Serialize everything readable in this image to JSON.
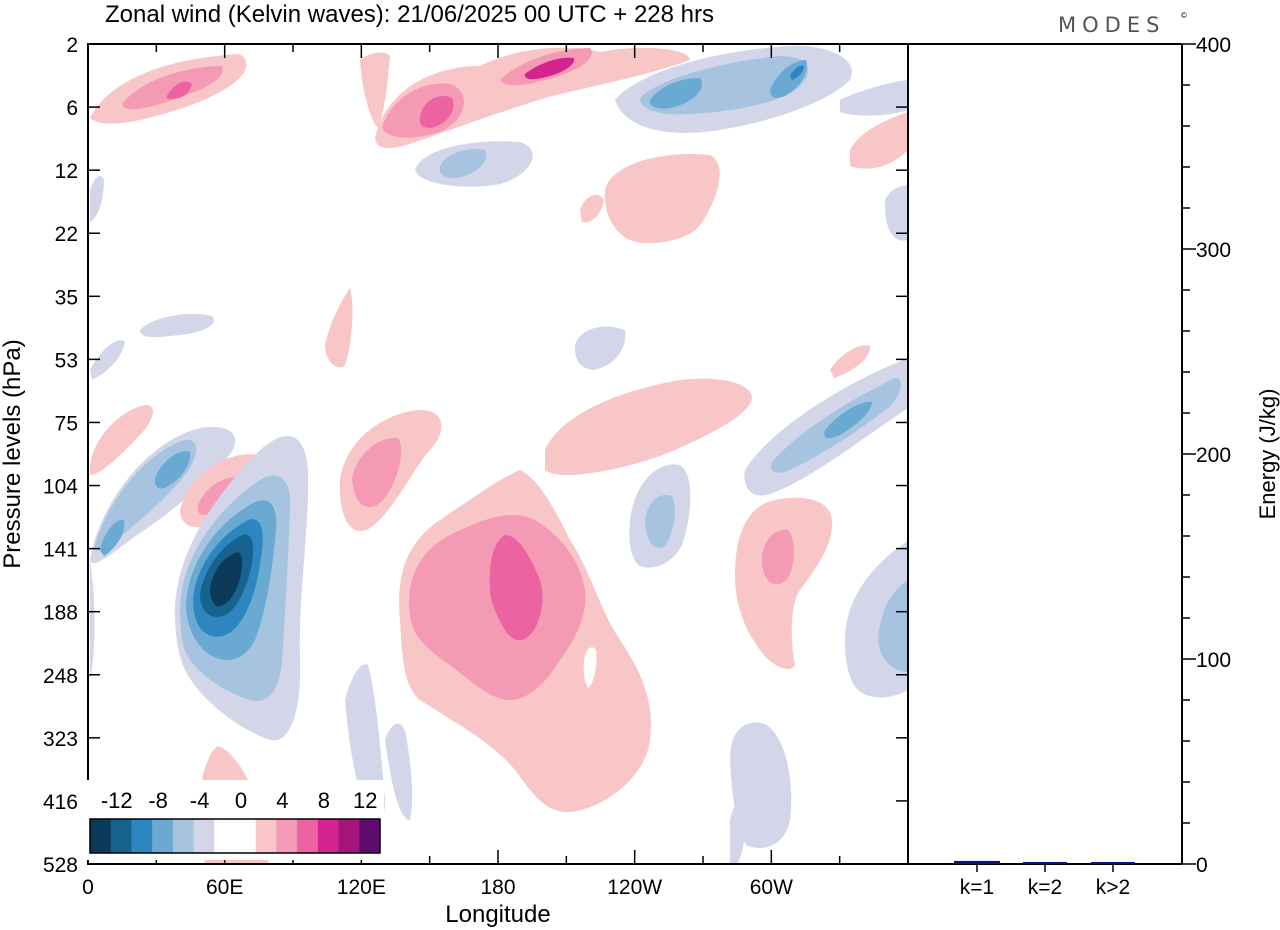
{
  "header": {
    "title": "Zonal wind (Kelvin waves):  21/06/2025  00 UTC  + 228 hrs",
    "brand": "MODES",
    "brand_mark": "©"
  },
  "chart_data": [
    {
      "type": "heatmap",
      "title": "Zonal wind (Kelvin waves):  21/06/2025  00 UTC  + 228 hrs",
      "xlabel": "Longitude",
      "ylabel": "Pressure levels (hPa)",
      "x_ticks": [
        "0",
        "60E",
        "120E",
        "180",
        "120W",
        "60W"
      ],
      "x_range_deg": [
        0,
        360
      ],
      "y_ticks": [
        "2",
        "6",
        "12",
        "22",
        "35",
        "53",
        "75",
        "104",
        "141",
        "188",
        "248",
        "323",
        "416",
        "528"
      ],
      "y_scale": "level-index",
      "colorbar": {
        "labels": [
          "-12",
          "-8",
          "-4",
          "0",
          "4",
          "8",
          "12"
        ],
        "colors": [
          "#0c3b5a",
          "#16638f",
          "#2e86c0",
          "#6aa9d2",
          "#a6c4e0",
          "#d3d6e9",
          "#ffffff",
          "#ffffff",
          "#f8c6c6",
          "#f59ab5",
          "#ec63a1",
          "#d2238f",
          "#a4157a",
          "#5e0b6e"
        ],
        "placement": "bottom-left"
      },
      "features": [
        {
          "name": "easterly core",
          "lon": 50,
          "level": 141,
          "value": -12
        },
        {
          "name": "westerly core",
          "lon": 180,
          "level": 141,
          "value": 8
        },
        {
          "name": "westerly upper",
          "lon": 195,
          "level": 2,
          "value": 10
        },
        {
          "name": "easterly upper",
          "lon": 255,
          "level": 6,
          "value": -8
        },
        {
          "name": "easterly tilted",
          "lon": 285,
          "level": 75,
          "value": -8
        },
        {
          "name": "westerly secondary",
          "lon": 290,
          "level": 141,
          "value": 6
        }
      ]
    },
    {
      "type": "bar",
      "ylabel": "Energy (J/kg)",
      "ylim": [
        0,
        400
      ],
      "y_ticks": [
        "0",
        "100",
        "200",
        "300",
        "400"
      ],
      "categories": [
        "k=1",
        "k=2",
        "k>2"
      ],
      "values": [
        1.5,
        0.8,
        0.8
      ],
      "bar_color": "#0a1280"
    }
  ]
}
